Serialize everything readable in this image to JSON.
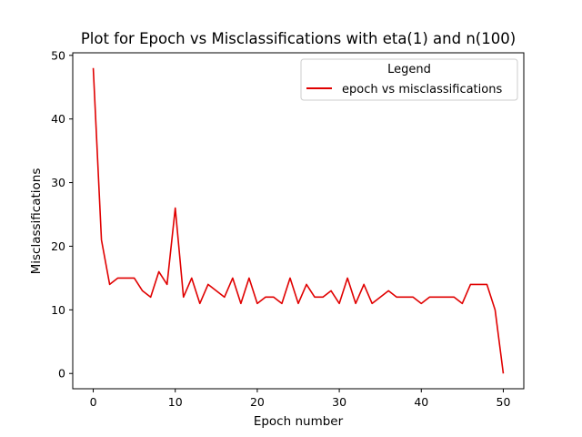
{
  "chart_data": {
    "type": "line",
    "title": "Plot for Epoch vs Misclassifications with eta(1) and n(100)",
    "xlabel": "Epoch number",
    "ylabel": "Misclassifications",
    "xlim": [
      -2.5,
      52.5
    ],
    "ylim": [
      -2.4,
      50.4
    ],
    "xticks": [
      0,
      10,
      20,
      30,
      40,
      50
    ],
    "yticks": [
      0,
      10,
      20,
      30,
      40,
      50
    ],
    "grid": false,
    "legend": {
      "title": "Legend",
      "placement": "top-right"
    },
    "series": [
      {
        "name": "epoch vs misclassifications",
        "color": "#e00000",
        "x": [
          0,
          1,
          2,
          3,
          4,
          5,
          6,
          7,
          8,
          9,
          10,
          11,
          12,
          13,
          14,
          15,
          16,
          17,
          18,
          19,
          20,
          21,
          22,
          23,
          24,
          25,
          26,
          27,
          28,
          29,
          30,
          31,
          32,
          33,
          34,
          35,
          36,
          37,
          38,
          39,
          40,
          41,
          42,
          43,
          44,
          45,
          46,
          47,
          48,
          49,
          50
        ],
        "y": [
          48,
          21,
          14,
          15,
          15,
          15,
          13,
          12,
          16,
          14,
          26,
          12,
          15,
          11,
          14,
          13,
          12,
          15,
          11,
          15,
          11,
          12,
          12,
          11,
          15,
          11,
          14,
          12,
          12,
          13,
          11,
          15,
          11,
          14,
          11,
          12,
          13,
          12,
          12,
          12,
          11,
          12,
          12,
          12,
          12,
          11,
          14,
          14,
          14,
          10,
          0
        ]
      }
    ]
  }
}
